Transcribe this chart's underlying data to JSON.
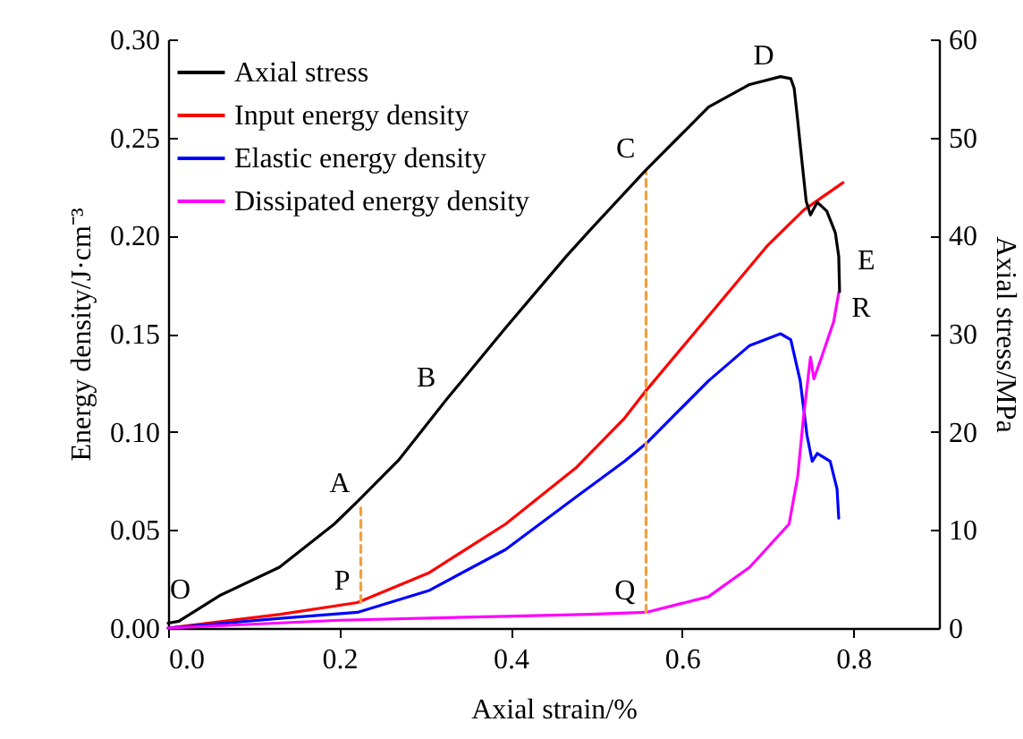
{
  "chart_data": {
    "type": "line",
    "xlabel": "Axial strain/%",
    "ylabel": "Energy density/J·cm⁻³",
    "y2label": "Axial stress/MPa",
    "xlim": [
      0,
      0.9
    ],
    "xticks": [
      {
        "value": 0,
        "label": "0.0"
      },
      {
        "value": 0.2,
        "label": "0.2"
      },
      {
        "value": 0.4,
        "label": "0.4"
      },
      {
        "value": 0.6,
        "label": "0.6"
      },
      {
        "value": 0.8,
        "label": "0.8"
      }
    ],
    "ylim": [
      0,
      0.3
    ],
    "yticks": [
      {
        "value": 0,
        "label": "0.00"
      },
      {
        "value": 0.05,
        "label": "0.05"
      },
      {
        "value": 0.1,
        "label": "0.10"
      },
      {
        "value": 0.15,
        "label": "0.15"
      },
      {
        "value": 0.2,
        "label": "0.20"
      },
      {
        "value": 0.25,
        "label": "0.25"
      },
      {
        "value": 0.3,
        "label": "0.30"
      }
    ],
    "y2lim": [
      0,
      60
    ],
    "y2ticks": [
      0,
      10,
      20,
      30,
      40,
      50,
      60
    ],
    "legend": "top left",
    "grid": false,
    "series": [
      {
        "name": "Axial stress",
        "color": "#000000",
        "axis": "y2",
        "x": [
          0,
          0.0125,
          0.06,
          0.13,
          0.194,
          0.221,
          0.269,
          0.325,
          0.394,
          0.465,
          0.492,
          0.558,
          0.631,
          0.679,
          0.715,
          0.727,
          0.731,
          0.735,
          0.74,
          0.745,
          0.75,
          0.758,
          0.769,
          0.779,
          0.783,
          0.784
        ],
        "values": [
          0.5,
          0.7,
          3.3,
          6.2,
          10.6,
          12.9,
          17.1,
          23.3,
          30.6,
          37.9,
          40.5,
          46.7,
          53.1,
          55.4,
          56.2,
          56,
          55,
          51.8,
          47.6,
          43.5,
          42.1,
          43.4,
          42.5,
          40.3,
          37.9,
          34.3
        ]
      },
      {
        "name": "Input energy density",
        "color": "#ff0000",
        "x": [
          0,
          0.131,
          0.221,
          0.304,
          0.394,
          0.477,
          0.533,
          0.558,
          0.631,
          0.7,
          0.742,
          0.788
        ],
        "values": [
          0,
          0.007,
          0.013,
          0.028,
          0.053,
          0.082,
          0.107,
          0.121,
          0.159,
          0.195,
          0.213,
          0.227
        ]
      },
      {
        "name": "Elastic energy density",
        "color": "#0000ff",
        "x": [
          0,
          0.131,
          0.221,
          0.304,
          0.394,
          0.477,
          0.533,
          0.558,
          0.631,
          0.679,
          0.715,
          0.727,
          0.738,
          0.746,
          0.752,
          0.758,
          0.773,
          0.781,
          0.783
        ],
        "values": [
          0,
          0.005,
          0.008,
          0.019,
          0.04,
          0.067,
          0.085,
          0.094,
          0.126,
          0.144,
          0.15,
          0.147,
          0.126,
          0.098,
          0.085,
          0.089,
          0.085,
          0.071,
          0.056
        ]
      },
      {
        "name": "Dissipated energy density",
        "color": "#ff00ff",
        "x": [
          0,
          0.2,
          0.394,
          0.492,
          0.558,
          0.631,
          0.679,
          0.725,
          0.735,
          0.742,
          0.75,
          0.754,
          0.763,
          0.777,
          0.783
        ],
        "values": [
          0,
          0.004,
          0.006,
          0.007,
          0.008,
          0.016,
          0.031,
          0.053,
          0.077,
          0.108,
          0.138,
          0.127,
          0.138,
          0.156,
          0.171
        ]
      },
      {
        "type": "line",
        "line_style": "dashed",
        "color": "#f5a040",
        "x": [
          0.225,
          0.225
        ],
        "values": [
          0.013,
          0.063
        ]
      },
      {
        "type": "line",
        "line_style": "dashed",
        "color": "#f5a040",
        "x": [
          0.558,
          0.558
        ],
        "values": [
          0.008,
          0.233
        ]
      }
    ],
    "annotations": [
      {
        "text": "O",
        "x": 0,
        "y": 0.0025
      },
      {
        "text": "A",
        "x": 0.225,
        "y": 0.063
      },
      {
        "text": "B",
        "x": 0.325,
        "y": 0.1165
      },
      {
        "text": "C",
        "x": 0.558,
        "y": 0.2335
      },
      {
        "text": "D",
        "x": 0.72,
        "y": 0.281
      },
      {
        "text": "E",
        "x": 0.784,
        "y": 0.18
      },
      {
        "text": "P",
        "x": 0.225,
        "y": 0.013
      },
      {
        "text": "Q",
        "x": 0.558,
        "y": 0.008
      },
      {
        "text": "R",
        "x": 0.777,
        "y": 0.156
      }
    ]
  }
}
